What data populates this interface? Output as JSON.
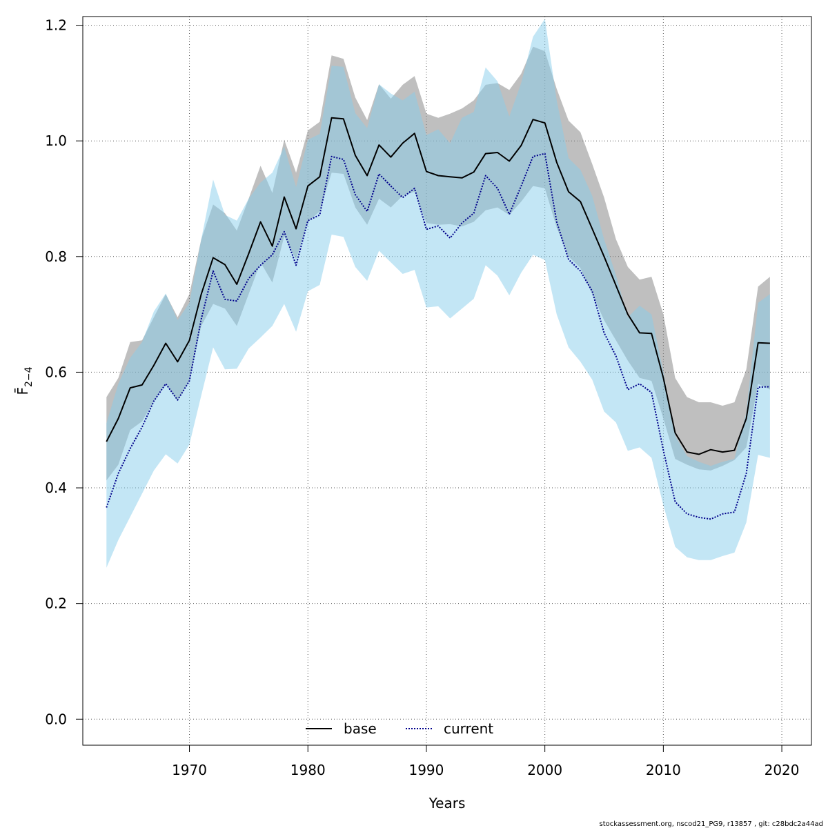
{
  "chart_data": {
    "type": "line",
    "xlabel": "Years",
    "ylabel": "F̄",
    "ylabel_subscript": "2−4",
    "x": [
      1963,
      1964,
      1965,
      1966,
      1967,
      1968,
      1969,
      1970,
      1971,
      1972,
      1973,
      1974,
      1975,
      1976,
      1977,
      1978,
      1979,
      1980,
      1981,
      1982,
      1983,
      1984,
      1985,
      1986,
      1987,
      1988,
      1989,
      1990,
      1991,
      1992,
      1993,
      1994,
      1995,
      1996,
      1997,
      1998,
      1999,
      2000,
      2001,
      2002,
      2003,
      2004,
      2005,
      2006,
      2007,
      2008,
      2009,
      2010,
      2011,
      2012,
      2013,
      2014,
      2015,
      2016,
      2017,
      2018,
      2019
    ],
    "xticks": [
      1970,
      1980,
      1990,
      2000,
      2010,
      2020
    ],
    "yticks": [
      0.0,
      0.2,
      0.4,
      0.6,
      0.8,
      1.0,
      1.2
    ],
    "ytick_labels": [
      "0.0",
      "0.2",
      "0.4",
      "0.6",
      "0.8",
      "1.0",
      "1.2"
    ],
    "xlim": [
      1961,
      2022.5
    ],
    "ylim": [
      -0.045,
      1.215
    ],
    "grid": true,
    "legend_position": "bottom-center",
    "series": [
      {
        "name": "base",
        "color": "#000000",
        "band_color": "#808080",
        "style": "solid",
        "values": [
          0.48,
          0.52,
          0.573,
          0.578,
          0.612,
          0.65,
          0.618,
          0.655,
          0.735,
          0.798,
          0.786,
          0.752,
          0.805,
          0.86,
          0.818,
          0.903,
          0.848,
          0.922,
          0.938,
          1.04,
          1.038,
          0.975,
          0.94,
          0.993,
          0.972,
          0.996,
          1.013,
          0.947,
          0.94,
          0.938,
          0.936,
          0.946,
          0.978,
          0.98,
          0.965,
          0.992,
          1.037,
          1.031,
          0.963,
          0.912,
          0.895,
          0.848,
          0.8,
          0.75,
          0.7,
          0.668,
          0.667,
          0.59,
          0.495,
          0.462,
          0.458,
          0.466,
          0.462,
          0.465,
          0.52,
          0.651,
          0.65
        ],
        "lower": [
          0.413,
          0.44,
          0.5,
          0.515,
          0.55,
          0.58,
          0.55,
          0.585,
          0.68,
          0.718,
          0.71,
          0.68,
          0.735,
          0.79,
          0.755,
          0.835,
          0.795,
          0.86,
          0.878,
          0.945,
          0.943,
          0.885,
          0.855,
          0.9,
          0.885,
          0.905,
          0.912,
          0.858,
          0.855,
          0.856,
          0.852,
          0.86,
          0.88,
          0.885,
          0.872,
          0.895,
          0.922,
          0.918,
          0.85,
          0.8,
          0.78,
          0.735,
          0.69,
          0.655,
          0.62,
          0.59,
          0.585,
          0.52,
          0.45,
          0.44,
          0.432,
          0.43,
          0.438,
          0.448,
          0.47,
          0.58,
          0.57
        ],
        "upper": [
          0.557,
          0.59,
          0.652,
          0.655,
          0.695,
          0.735,
          0.695,
          0.735,
          0.83,
          0.89,
          0.875,
          0.845,
          0.9,
          0.957,
          0.91,
          1.002,
          0.945,
          1.018,
          1.033,
          1.148,
          1.142,
          1.075,
          1.036,
          1.098,
          1.073,
          1.097,
          1.112,
          1.047,
          1.04,
          1.047,
          1.056,
          1.07,
          1.097,
          1.1,
          1.088,
          1.116,
          1.163,
          1.155,
          1.09,
          1.035,
          1.015,
          0.96,
          0.902,
          0.83,
          0.782,
          0.76,
          0.765,
          0.7,
          0.59,
          0.557,
          0.548,
          0.548,
          0.542,
          0.548,
          0.605,
          0.748,
          0.765
        ]
      },
      {
        "name": "current",
        "color": "#00008b",
        "band_color": "#87ceeb",
        "style": "dotted",
        "values": [
          0.366,
          0.425,
          0.468,
          0.505,
          0.55,
          0.58,
          0.552,
          0.585,
          0.692,
          0.775,
          0.726,
          0.723,
          0.762,
          0.785,
          0.803,
          0.843,
          0.785,
          0.862,
          0.872,
          0.973,
          0.968,
          0.907,
          0.878,
          0.943,
          0.922,
          0.902,
          0.918,
          0.847,
          0.853,
          0.832,
          0.858,
          0.875,
          0.94,
          0.918,
          0.873,
          0.922,
          0.973,
          0.978,
          0.86,
          0.795,
          0.775,
          0.74,
          0.668,
          0.628,
          0.57,
          0.58,
          0.565,
          0.465,
          0.376,
          0.355,
          0.349,
          0.346,
          0.355,
          0.358,
          0.425,
          0.574,
          0.575
        ],
        "lower": [
          0.262,
          0.31,
          0.35,
          0.39,
          0.43,
          0.458,
          0.442,
          0.475,
          0.56,
          0.643,
          0.605,
          0.606,
          0.641,
          0.66,
          0.68,
          0.718,
          0.67,
          0.74,
          0.751,
          0.838,
          0.834,
          0.782,
          0.758,
          0.81,
          0.79,
          0.77,
          0.777,
          0.712,
          0.714,
          0.693,
          0.71,
          0.727,
          0.785,
          0.767,
          0.733,
          0.772,
          0.803,
          0.794,
          0.7,
          0.643,
          0.618,
          0.587,
          0.532,
          0.513,
          0.464,
          0.47,
          0.452,
          0.37,
          0.298,
          0.28,
          0.275,
          0.275,
          0.282,
          0.288,
          0.34,
          0.457,
          0.452
        ],
        "upper": [
          0.512,
          0.58,
          0.625,
          0.652,
          0.705,
          0.736,
          0.69,
          0.72,
          0.83,
          0.933,
          0.872,
          0.862,
          0.9,
          0.928,
          0.945,
          0.99,
          0.92,
          1.002,
          1.012,
          1.13,
          1.128,
          1.048,
          1.022,
          1.098,
          1.082,
          1.07,
          1.085,
          1.01,
          1.02,
          0.996,
          1.04,
          1.05,
          1.127,
          1.103,
          1.042,
          1.1,
          1.18,
          1.211,
          1.07,
          0.97,
          0.95,
          0.905,
          0.83,
          0.768,
          0.695,
          0.715,
          0.7,
          0.6,
          0.49,
          0.455,
          0.445,
          0.438,
          0.445,
          0.45,
          0.53,
          0.72,
          0.735
        ]
      }
    ]
  },
  "footer": {
    "text": "stockassessment.org, nscod21_PG9, r13857 , git: c28bdc2a44ad"
  }
}
